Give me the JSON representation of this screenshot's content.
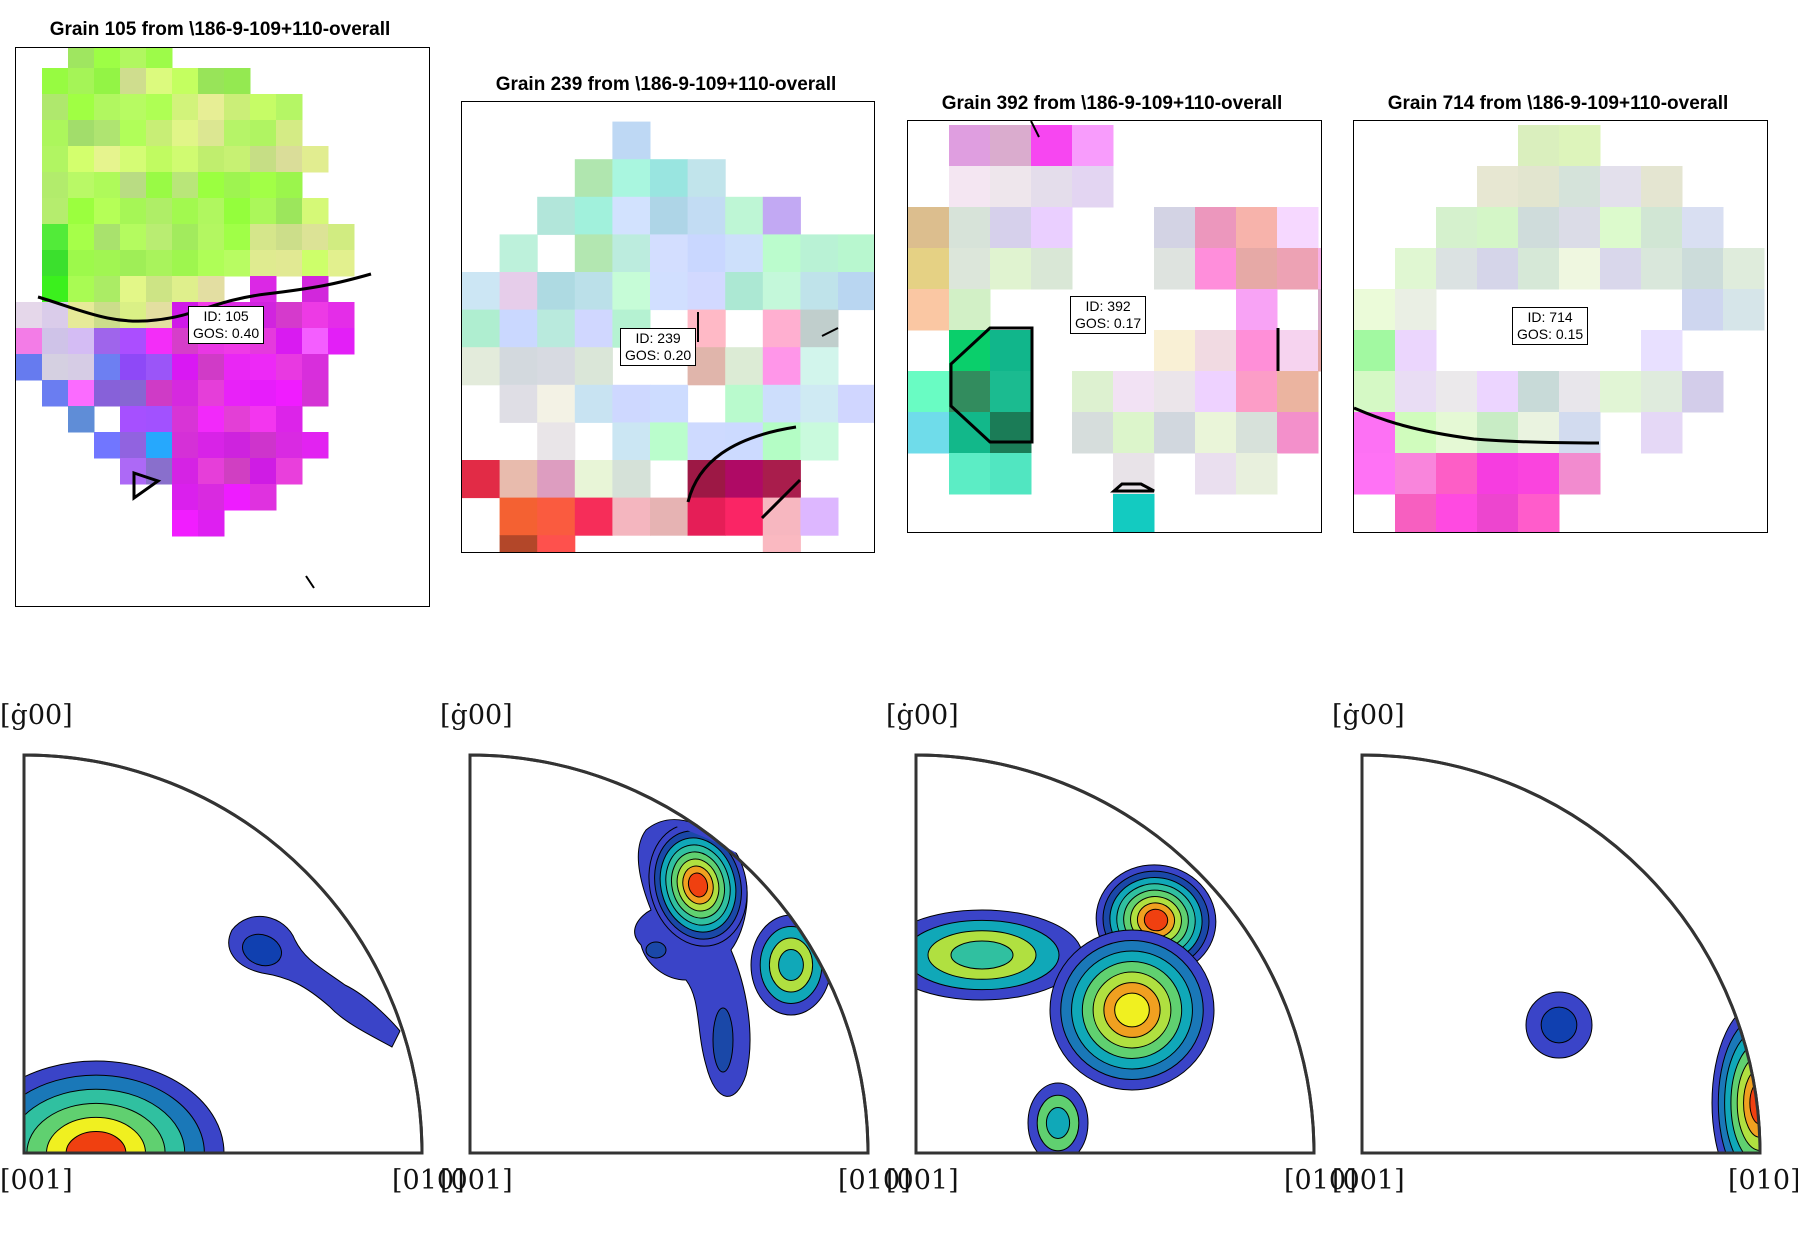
{
  "grains": [
    {
      "title": "Grain 105 from \\186-9-109+110-overall",
      "id_label": "ID: 105",
      "gos_label": "GOS: 0.40"
    },
    {
      "title": "Grain 239 from \\186-9-109+110-overall",
      "id_label": "ID: 239",
      "gos_label": "GOS: 0.20"
    },
    {
      "title": "Grain 392 from \\186-9-109+110-overall",
      "id_label": "ID: 392",
      "gos_label": "GOS: 0.17"
    },
    {
      "title": "Grain 714 from \\186-9-109+110-overall",
      "id_label": "ID: 714",
      "gos_label": "GOS: 0.15"
    }
  ],
  "pole_figures": [
    {
      "top_label": "[ġ00]",
      "left_label": "[001]",
      "right_label": "[010]"
    },
    {
      "top_label": "[ġ00]",
      "left_label": "[001]",
      "right_label": "[010]"
    },
    {
      "top_label": "[ġ00]",
      "left_label": "[001]",
      "right_label": "[010]"
    },
    {
      "top_label": "[ġ00]",
      "left_label": "[001]",
      "right_label": "[010]"
    }
  ],
  "colors": {
    "green": "#a8f060",
    "magenta": "#e030e8",
    "pale_cyan": "#bfe9e4",
    "red": "#f03050",
    "contour_low": "#3a44c8",
    "contour_hot": "#f04010"
  }
}
